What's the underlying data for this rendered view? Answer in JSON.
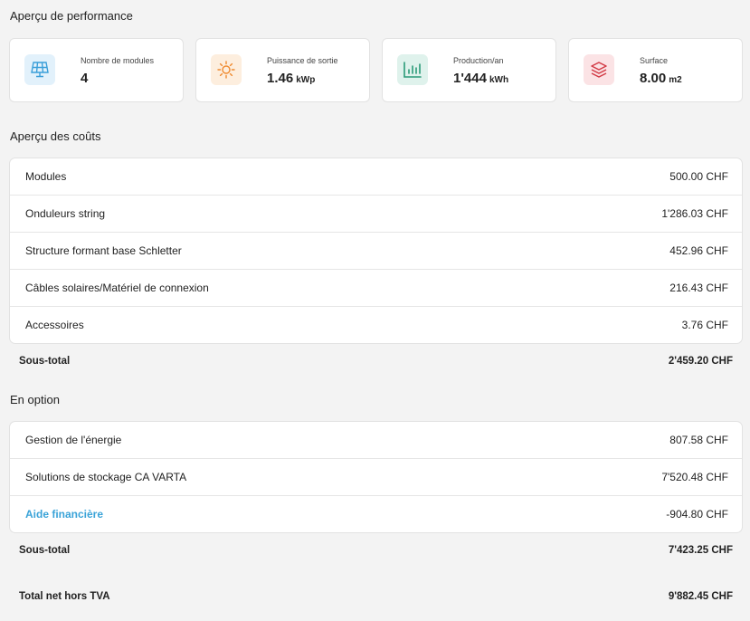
{
  "performance": {
    "title": "Aperçu de performance",
    "cards": [
      {
        "label": "Nombre de modules",
        "value": "4",
        "unit": "",
        "icon": "solar-panel-icon",
        "color": "#3b9fd9",
        "bg": "#e2f1fb"
      },
      {
        "label": "Puissance de sortie",
        "value": "1.46",
        "unit": "kWp",
        "icon": "sun-icon",
        "color": "#ef8a2f",
        "bg": "#fdeede"
      },
      {
        "label": "Production/an",
        "value": "1'444",
        "unit": "kWh",
        "icon": "bar-chart-icon",
        "color": "#2a9a78",
        "bg": "#dff2ec"
      },
      {
        "label": "Surface",
        "value": "8.00",
        "unit": "m2",
        "icon": "layers-icon",
        "color": "#d23b46",
        "bg": "#fbe3e5"
      }
    ]
  },
  "costs": {
    "title": "Aperçu des coûts",
    "rows": [
      {
        "name": "Modules",
        "amount": "500.00 CHF"
      },
      {
        "name": "Onduleurs string",
        "amount": "1'286.03 CHF"
      },
      {
        "name": "Structure formant base Schletter",
        "amount": "452.96 CHF"
      },
      {
        "name": "Câbles solaires/Matériel de connexion",
        "amount": "216.43 CHF"
      },
      {
        "name": "Accessoires",
        "amount": "3.76 CHF"
      }
    ],
    "subtotal_label": "Sous-total",
    "subtotal_value": "2'459.20 CHF"
  },
  "options": {
    "title": "En option",
    "rows": [
      {
        "name": "Gestion de l'énergie",
        "amount": "807.58 CHF"
      },
      {
        "name": "Solutions de stockage CA VARTA",
        "amount": "7'520.48 CHF"
      },
      {
        "name": "Aide financière",
        "amount": "-904.80 CHF"
      }
    ],
    "subtotal_label": "Sous-total",
    "subtotal_value": "7'423.25 CHF"
  },
  "total": {
    "label": "Total net hors TVA",
    "value": "9'882.45 CHF"
  }
}
